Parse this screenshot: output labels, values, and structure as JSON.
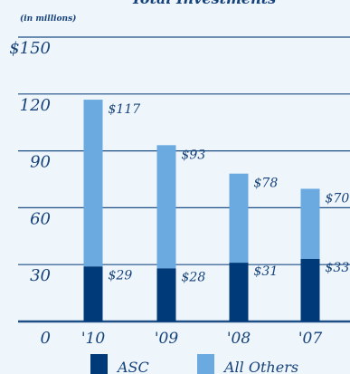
{
  "chart_data": {
    "type": "bar",
    "stacked": true,
    "title": "Total Investments",
    "units_note": "(in millions)",
    "categories": [
      "'10",
      "'09",
      "'08",
      "'07"
    ],
    "series": [
      {
        "name": "ASC",
        "values": [
          29,
          28,
          31,
          33
        ],
        "labels": [
          "$29",
          "$28",
          "$31",
          "$33"
        ],
        "color": "#003a78"
      },
      {
        "name": "All Others",
        "values": [
          88,
          65,
          47,
          37
        ],
        "color": "#6aaae0"
      }
    ],
    "totals": [
      117,
      93,
      78,
      70
    ],
    "total_labels": [
      "$117",
      "$93",
      "$78",
      "$70"
    ],
    "yticks": [
      "0",
      "30",
      "60",
      "90",
      "120",
      "$150"
    ],
    "ytick_values": [
      0,
      30,
      60,
      90,
      120,
      150
    ],
    "ylim": [
      0,
      150
    ],
    "grid": true,
    "gridline_color": "#1d4f86",
    "legend_position": "bottom"
  }
}
